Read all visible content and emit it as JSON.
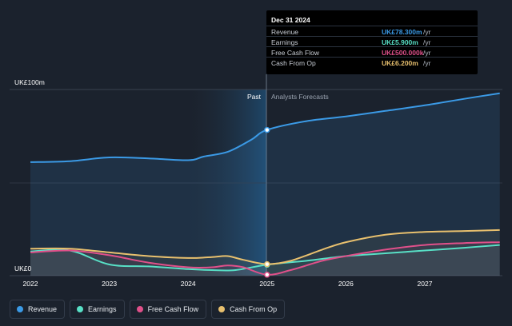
{
  "chart_data": {
    "type": "line",
    "x_ticks": [
      "2022",
      "2023",
      "2024",
      "2025",
      "2026",
      "2027"
    ],
    "y_ticks": [
      "UK£100m",
      "UK£0"
    ],
    "ylim": [
      0,
      100
    ],
    "divider_x": 2025.0,
    "past_label": "Past",
    "forecast_label": "Analysts Forecasts",
    "series": [
      {
        "name": "Revenue",
        "color": "#3b9ae6",
        "x": [
          2022.0,
          2022.5,
          2023.0,
          2023.5,
          2024.0,
          2024.2,
          2024.5,
          2024.8,
          2025.0,
          2025.5,
          2026.0,
          2026.5,
          2027.0,
          2027.5,
          2027.95
        ],
        "y": [
          61,
          61.5,
          63.5,
          63,
          62,
          64,
          66.5,
          73,
          78.3,
          83,
          85.5,
          88.5,
          91.5,
          95,
          98
        ]
      },
      {
        "name": "Earnings",
        "color": "#58e0c6",
        "x": [
          2022.0,
          2022.5,
          2023.0,
          2023.5,
          2024.0,
          2024.3,
          2024.6,
          2025.0,
          2025.5,
          2026.0,
          2026.5,
          2027.0,
          2027.5,
          2027.95
        ],
        "y": [
          13,
          13.5,
          6,
          5,
          3.5,
          3,
          3,
          5.9,
          8,
          10.5,
          12,
          13.5,
          15,
          16.5
        ]
      },
      {
        "name": "Free Cash Flow",
        "color": "#e0508a",
        "x": [
          2022.0,
          2022.5,
          2023.0,
          2023.5,
          2024.0,
          2024.3,
          2024.5,
          2024.7,
          2025.0,
          2025.3,
          2025.7,
          2026.0,
          2026.5,
          2027.0,
          2027.5,
          2027.95
        ],
        "y": [
          12.5,
          13.5,
          11,
          7,
          4.5,
          4.5,
          5.5,
          4.5,
          0.5,
          3,
          8,
          10.5,
          14,
          16.5,
          17.5,
          18
        ]
      },
      {
        "name": "Cash From Op",
        "color": "#e8c06e",
        "x": [
          2022.0,
          2022.5,
          2023.0,
          2023.5,
          2024.0,
          2024.3,
          2024.5,
          2024.7,
          2025.0,
          2025.3,
          2025.7,
          2026.0,
          2026.5,
          2027.0,
          2027.5,
          2027.95
        ],
        "y": [
          14.5,
          14.5,
          12.5,
          10.5,
          9.5,
          10,
          10.5,
          8.5,
          6.2,
          8,
          14,
          18,
          22,
          23.5,
          24,
          24.5
        ]
      }
    ],
    "tooltip": {
      "title": "Dec 31 2024",
      "rows": [
        {
          "label": "Revenue",
          "value": "UK£78.300m",
          "unit": "/yr",
          "color": "#3b9ae6"
        },
        {
          "label": "Earnings",
          "value": "UK£5.900m",
          "unit": "/yr",
          "color": "#58e0c6"
        },
        {
          "label": "Free Cash Flow",
          "value": "UK£500.000k",
          "unit": "/yr",
          "color": "#e0508a"
        },
        {
          "label": "Cash From Op",
          "value": "UK£6.200m",
          "unit": "/yr",
          "color": "#e8c06e"
        }
      ]
    }
  },
  "legend": [
    {
      "label": "Revenue",
      "color": "#3b9ae6"
    },
    {
      "label": "Earnings",
      "color": "#58e0c6"
    },
    {
      "label": "Free Cash Flow",
      "color": "#e0508a"
    },
    {
      "label": "Cash From Op",
      "color": "#e8c06e"
    }
  ]
}
